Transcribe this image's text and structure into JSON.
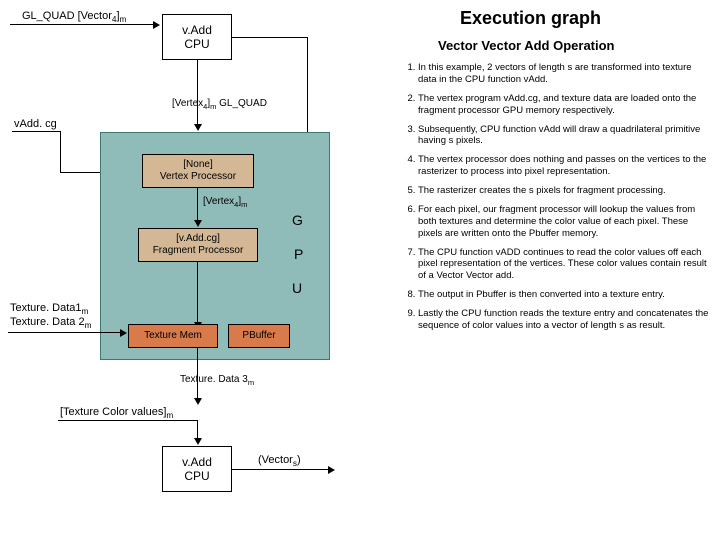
{
  "title": "Execution graph",
  "subtitle": "Vector Vector Add Operation",
  "title_fontsize": 18,
  "subtitle_fontsize": 13,
  "colors": {
    "cpu_bg": "#ffffff",
    "gpu_panel_bg": "#8fbcb8",
    "gpu_panel_border": "#3a7a6f",
    "proc_bg": "#d4b896",
    "mem_bg": "#d97a4a",
    "text": "#000000"
  },
  "labels": {
    "input_arrow": "GL_QUAD [Vector",
    "input_arrow_sub": "4",
    "input_arrow_tail": "]",
    "input_arrow_sub2": "m",
    "vadd_cpu": "v.Add\nCPU",
    "vadd_cg": "vAdd. cg",
    "vertex_gl": "[Vertex",
    "vertex_gl_sub": "4",
    "vertex_gl_tail": "]",
    "vertex_gl_sub2": "m",
    "vertex_gl_end": " GL_QUAD",
    "vertex_proc": "[None]\nVertex Processor",
    "vertex_out": "[Vertex",
    "vertex_out_sub": "4",
    "vertex_out_tail": "]",
    "vertex_out_sub2": "m",
    "frag_proc": "[v.Add.cg]\nFragment Processor",
    "g": "G",
    "p": "P",
    "u": "U",
    "tex1": "Texture. Data1",
    "tex1_sub": "m",
    "tex2": "Texture. Data 2",
    "tex2_sub": "m",
    "tex_mem": "Texture Mem",
    "pbuffer": "PBuffer",
    "tex3": "Texture. Data 3",
    "tex3_sub": "m",
    "tex_color": "[Texture Color values]",
    "tex_color_sub": "m",
    "vadd_cpu2": "v.Add\nCPU",
    "vectors": "(Vector",
    "vectors_sub": "s",
    "vectors_tail": ")"
  },
  "steps": [
    "In this example, 2 vectors of length s are transformed into texture data in the CPU function vAdd.",
    "The vertex program vAdd.cg, and texture data are loaded onto the fragment processor GPU memory respectively.",
    "Subsequently, CPU function vAdd will draw a quadrilateral primitive having s pixels.",
    "The vertex processor does nothing and passes on the vertices to the rasterizer to process into pixel representation.",
    "The rasterizer creates the s pixels for fragment processing.",
    "For each pixel, our fragment processor will lookup the values from both textures and determine the color value of each pixel. These pixels are written onto the Pbuffer memory.",
    "The CPU function vADD continues to read the color values off each pixel representation of the vertices. These color values contain result of a Vector Vector add.",
    "The output in Pbuffer is then converted into a texture entry.",
    "Lastly the CPU function reads the texture entry and concatenates the sequence of color values into a vector of length s as result."
  ]
}
